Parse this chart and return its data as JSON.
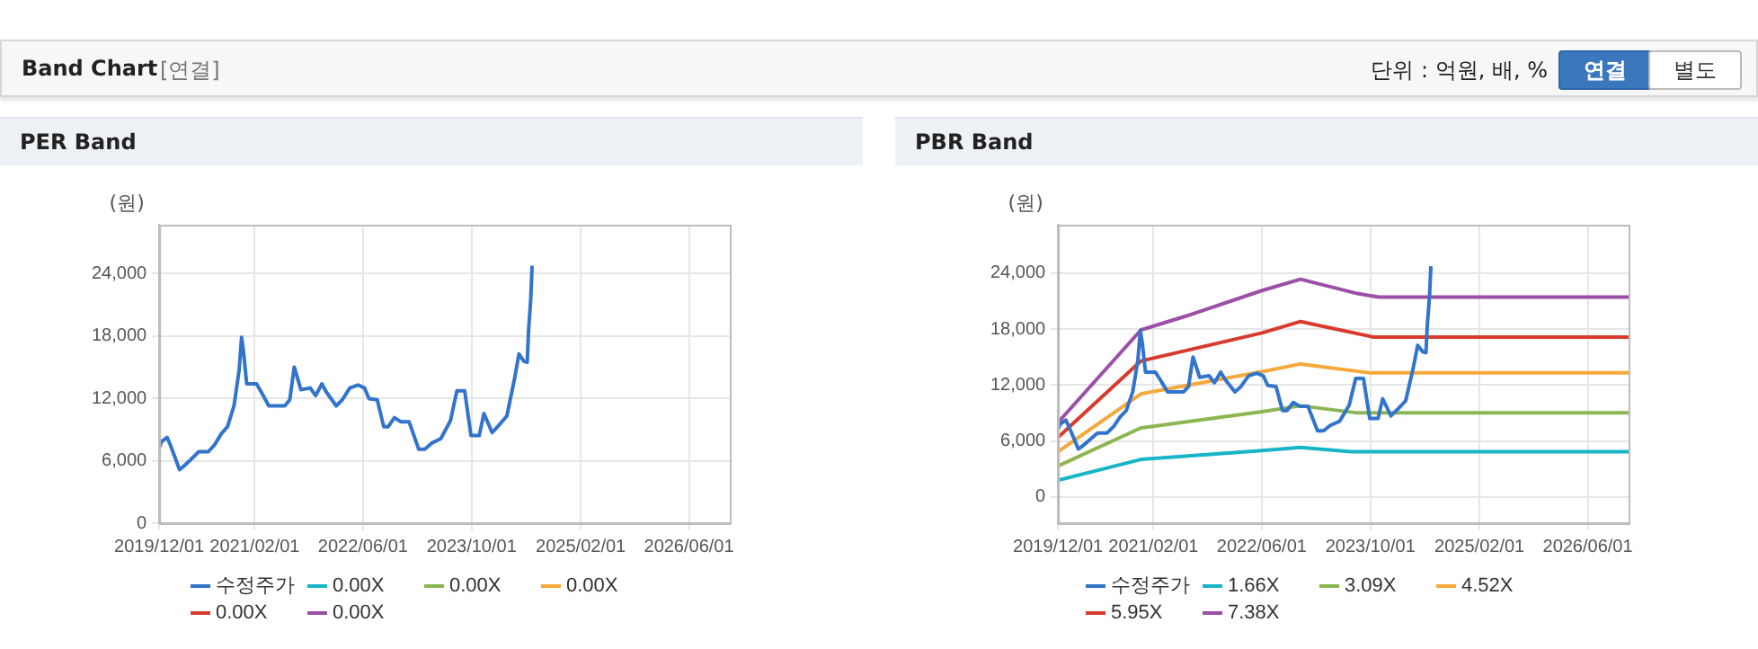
{
  "chart_data": [
    {
      "type": "line",
      "title": "PER Band",
      "ylabel": "(원)",
      "annotations": [
        "Band Chart",
        "[연결]",
        "단위 : 억원, 배, %",
        "연결",
        "별도"
      ],
      "xlim": [
        "2019-12-01",
        "2026-12-01"
      ],
      "xticks": [
        {
          "value": "2019-12-01",
          "label": "2019/12/01"
        },
        {
          "value": "2021-02-01",
          "label": "2021/02/01"
        },
        {
          "value": "2022-06-01",
          "label": "2022/06/01"
        },
        {
          "value": "2023-10-01",
          "label": "2023/10/01"
        },
        {
          "value": "2025-02-01",
          "label": "2025/02/01"
        },
        {
          "value": "2026-06-01",
          "label": "2026/06/01"
        }
      ],
      "ylim": [
        0,
        28700
      ],
      "yticks": [
        {
          "value": 0,
          "label": "0"
        },
        {
          "value": 6000,
          "label": "6,000"
        },
        {
          "value": 12000,
          "label": "12,000"
        },
        {
          "value": 18000,
          "label": "18,000"
        },
        {
          "value": 24000,
          "label": "24,000"
        }
      ],
      "grid": true,
      "legend": "bottom",
      "series": [
        {
          "name": "수정주가",
          "color": "#3274cc",
          "x": [
            "2019-12-01",
            "2019-12-12",
            "2020-01-05",
            "2020-01-19",
            "2020-03-01",
            "2020-03-15",
            "2020-04-13",
            "2020-05-26",
            "2020-07-08",
            "2020-08-06",
            "2020-09-04",
            "2020-10-02",
            "2020-10-31",
            "2020-11-23",
            "2020-12-04",
            "2020-12-13",
            "2020-12-27",
            "2021-02-09",
            "2021-03-07",
            "2021-04-05",
            "2021-06-16",
            "2021-07-08",
            "2021-07-28",
            "2021-08-27",
            "2021-10-08",
            "2021-11-01",
            "2021-11-29",
            "2021-12-19",
            "2022-02-01",
            "2022-02-28",
            "2022-04-03",
            "2022-05-10",
            "2022-06-08",
            "2022-06-28",
            "2022-08-04",
            "2022-09-02",
            "2022-09-22",
            "2022-10-20",
            "2022-11-19",
            "2022-12-25",
            "2023-02-06",
            "2023-03-05",
            "2023-04-04",
            "2023-05-16",
            "2023-06-28",
            "2023-07-27",
            "2023-08-31",
            "2023-09-28",
            "2023-11-04",
            "2023-11-25",
            "2024-01-01",
            "2024-01-30",
            "2024-03-07",
            "2024-04-10",
            "2024-04-30",
            "2024-05-22",
            "2024-06-06",
            "2024-06-12",
            "2024-06-22",
            "2024-06-28"
          ],
          "values": [
            7270,
            7850,
            8250,
            7560,
            5150,
            5380,
            5960,
            6870,
            6870,
            7560,
            8590,
            9280,
            11280,
            14720,
            17870,
            16440,
            13400,
            13400,
            12430,
            11280,
            11280,
            11860,
            15010,
            12830,
            13000,
            12260,
            13400,
            12600,
            11280,
            11860,
            13000,
            13290,
            13000,
            11970,
            11860,
            9280,
            9280,
            10140,
            9740,
            9740,
            7100,
            7100,
            7680,
            8130,
            9850,
            12720,
            12720,
            8420,
            8420,
            10540,
            8710,
            9390,
            10310,
            13860,
            16270,
            15580,
            15470,
            18440,
            21600,
            24750
          ]
        },
        {
          "name": "0.00X",
          "color": "#17b5c7"
        },
        {
          "name": "0.00X",
          "color": "#8cb651"
        },
        {
          "name": "0.00X",
          "color": "#f5a93a"
        },
        {
          "name": "0.00X",
          "color": "#d83b2d"
        },
        {
          "name": "0.00X",
          "color": "#9b4fa6"
        }
      ]
    },
    {
      "type": "line",
      "title": "PBR Band",
      "ylabel": "(원)",
      "xlim": [
        "2019-12-01",
        "2026-12-01"
      ],
      "xticks": [
        {
          "value": "2019-12-01",
          "label": "2019/12/01"
        },
        {
          "value": "2021-02-01",
          "label": "2021/02/01"
        },
        {
          "value": "2022-06-01",
          "label": "2022/06/01"
        },
        {
          "value": "2023-10-01",
          "label": "2023/10/01"
        },
        {
          "value": "2025-02-01",
          "label": "2025/02/01"
        },
        {
          "value": "2026-06-01",
          "label": "2026/06/01"
        }
      ],
      "ylim": [
        -2800,
        29200
      ],
      "yticks": [
        {
          "value": 0,
          "label": "0"
        },
        {
          "value": 6000,
          "label": "6,000"
        },
        {
          "value": 12000,
          "label": "12,000"
        },
        {
          "value": 18000,
          "label": "18,000"
        },
        {
          "value": 24000,
          "label": "24,000"
        }
      ],
      "grid": true,
      "legend": "bottom",
      "series": [
        {
          "name": "수정주가",
          "color": "#3274cc",
          "x": [
            "2019-12-01",
            "2019-12-12",
            "2020-01-05",
            "2020-01-19",
            "2020-03-01",
            "2020-03-15",
            "2020-04-13",
            "2020-05-26",
            "2020-07-08",
            "2020-08-06",
            "2020-09-04",
            "2020-10-02",
            "2020-10-31",
            "2020-11-23",
            "2020-12-04",
            "2020-12-13",
            "2020-12-27",
            "2021-02-09",
            "2021-03-07",
            "2021-04-05",
            "2021-06-16",
            "2021-07-08",
            "2021-07-28",
            "2021-08-27",
            "2021-10-08",
            "2021-11-01",
            "2021-11-29",
            "2021-12-19",
            "2022-02-01",
            "2022-02-28",
            "2022-04-03",
            "2022-05-10",
            "2022-06-08",
            "2022-06-28",
            "2022-08-04",
            "2022-09-02",
            "2022-09-22",
            "2022-10-20",
            "2022-11-19",
            "2022-12-25",
            "2023-02-06",
            "2023-03-05",
            "2023-04-04",
            "2023-05-16",
            "2023-06-28",
            "2023-07-27",
            "2023-08-31",
            "2023-09-28",
            "2023-11-04",
            "2023-11-25",
            "2024-01-01",
            "2024-01-30",
            "2024-03-07",
            "2024-04-10",
            "2024-04-30",
            "2024-05-22",
            "2024-06-06",
            "2024-06-12",
            "2024-06-22",
            "2024-06-28"
          ],
          "values": [
            7270,
            7850,
            8250,
            7560,
            5150,
            5380,
            5960,
            6870,
            6870,
            7560,
            8590,
            9280,
            11280,
            14720,
            17870,
            16440,
            13400,
            13400,
            12430,
            11280,
            11280,
            11860,
            15010,
            12830,
            13000,
            12260,
            13400,
            12600,
            11280,
            11860,
            13000,
            13290,
            13000,
            11970,
            11860,
            9280,
            9280,
            10140,
            9740,
            9740,
            7100,
            7100,
            7680,
            8130,
            9850,
            12720,
            12720,
            8420,
            8420,
            10540,
            8710,
            9390,
            10310,
            13860,
            16270,
            15580,
            15470,
            18440,
            21600,
            24750
          ]
        },
        {
          "name": "1.66X",
          "color": "#17b5c7",
          "x": [
            "2019-12-01",
            "2020-12-07",
            "2022-06-02",
            "2022-11-22",
            "2023-07-06",
            "2026-12-01"
          ],
          "values": [
            1790,
            4030,
            4990,
            5310,
            4860,
            4860
          ]
        },
        {
          "name": "3.09X",
          "color": "#8cb651",
          "x": [
            "2019-12-01",
            "2020-12-07",
            "2022-06-02",
            "2022-11-22",
            "2023-08-04",
            "2026-12-01"
          ],
          "values": [
            3330,
            7420,
            9150,
            9790,
            9020,
            9020
          ]
        },
        {
          "name": "4.52X",
          "color": "#f5a93a",
          "x": [
            "2019-12-01",
            "2020-12-07",
            "2022-06-02",
            "2022-11-22",
            "2023-10-01",
            "2026-12-01"
          ],
          "values": [
            4860,
            11070,
            13440,
            14270,
            13310,
            13310
          ]
        },
        {
          "name": "5.95X",
          "color": "#d83b2d",
          "x": [
            "2019-12-01",
            "2020-12-07",
            "2022-06-02",
            "2022-11-22",
            "2023-10-15",
            "2026-12-01"
          ],
          "values": [
            6400,
            14590,
            17600,
            18820,
            17150,
            17150
          ]
        },
        {
          "name": "7.38X",
          "color": "#9b4fa6",
          "x": [
            "2019-12-01",
            "2020-12-07",
            "2021-06-25",
            "2022-06-02",
            "2022-11-22",
            "2023-08-04",
            "2023-11-07",
            "2026-12-01"
          ],
          "values": [
            8000,
            17920,
            19390,
            22140,
            23360,
            21820,
            21440,
            21440
          ]
        }
      ]
    }
  ]
}
